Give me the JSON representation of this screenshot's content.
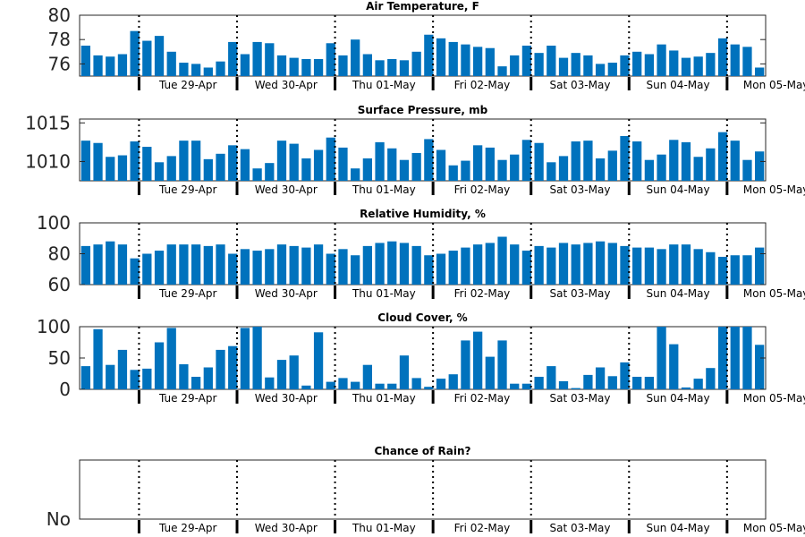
{
  "bar_color": "#0072bd",
  "chart_data": [
    {
      "type": "bar",
      "title": "Air Temperature, F",
      "x_tick_labels": [
        "Tue 29-Apr",
        "Wed 30-Apr",
        "Thu 01-May",
        "Fri 02-May",
        "Sat 03-May",
        "Sun 04-May",
        "Mon 05-May"
      ],
      "y_ticks": [
        "76",
        "78",
        "80"
      ],
      "ylim": [
        75,
        80
      ],
      "values": [
        77.5,
        76.7,
        76.6,
        76.8,
        78.7,
        77.9,
        78.3,
        77.0,
        76.1,
        76.0,
        75.7,
        76.2,
        77.8,
        76.8,
        77.8,
        77.7,
        76.7,
        76.5,
        76.4,
        76.4,
        77.7,
        76.7,
        78.0,
        76.8,
        76.3,
        76.4,
        76.3,
        77.0,
        78.4,
        78.1,
        77.8,
        77.6,
        77.4,
        77.3,
        75.8,
        76.7,
        77.5,
        76.9,
        77.5,
        76.5,
        76.9,
        76.7,
        76.0,
        76.1,
        76.7,
        77.0,
        76.8,
        77.6,
        77.1,
        76.5,
        76.6,
        76.9,
        78.1,
        77.6,
        77.4,
        75.7
      ],
      "grid": false
    },
    {
      "type": "bar",
      "title": "Surface Pressure, mb",
      "x_tick_labels": [
        "Tue 29-Apr",
        "Wed 30-Apr",
        "Thu 01-May",
        "Fri 02-May",
        "Sat 03-May",
        "Sun 04-May",
        "Mon 05-May"
      ],
      "y_ticks": [
        "1010",
        "1015"
      ],
      "ylim": [
        1007.5,
        1015.5
      ],
      "values": [
        1012.7,
        1012.4,
        1010.6,
        1010.8,
        1012.6,
        1011.9,
        1009.9,
        1010.7,
        1012.7,
        1012.7,
        1010.3,
        1011.0,
        1012.1,
        1011.6,
        1009.1,
        1009.8,
        1012.7,
        1012.3,
        1010.4,
        1011.5,
        1013.1,
        1011.8,
        1009.1,
        1010.4,
        1012.5,
        1011.7,
        1010.2,
        1011.1,
        1012.9,
        1011.5,
        1009.5,
        1010.1,
        1012.1,
        1011.8,
        1010.2,
        1010.9,
        1012.8,
        1012.4,
        1009.9,
        1010.7,
        1012.6,
        1012.7,
        1010.4,
        1011.4,
        1013.3,
        1012.6,
        1010.2,
        1010.9,
        1012.8,
        1012.5,
        1010.6,
        1011.7,
        1013.8,
        1012.7,
        1010.2,
        1011.3
      ],
      "grid": false
    },
    {
      "type": "bar",
      "title": "Relative Humidity, %",
      "x_tick_labels": [
        "Tue 29-Apr",
        "Wed 30-Apr",
        "Thu 01-May",
        "Fri 02-May",
        "Sat 03-May",
        "Sun 04-May",
        "Mon 05-May"
      ],
      "y_ticks": [
        "60",
        "80",
        "100"
      ],
      "ylim": [
        60,
        100
      ],
      "values": [
        85,
        86,
        88,
        86,
        77,
        80,
        82,
        86,
        86,
        86,
        85,
        86,
        80,
        83,
        82,
        83,
        86,
        85,
        84,
        86,
        80,
        83,
        79,
        85,
        87,
        88,
        87,
        85,
        79,
        80,
        82,
        84,
        86,
        87,
        91,
        86,
        82,
        85,
        84,
        87,
        86,
        87,
        88,
        87,
        85,
        84,
        84,
        83,
        86,
        86,
        83,
        81,
        78,
        79,
        79,
        84
      ],
      "grid": false
    },
    {
      "type": "bar",
      "title": "Cloud Cover, %",
      "x_tick_labels": [
        "Tue 29-Apr",
        "Wed 30-Apr",
        "Thu 01-May",
        "Fri 02-May",
        "Sat 03-May",
        "Sun 04-May",
        "Mon 05-May"
      ],
      "y_ticks": [
        "0",
        "50",
        "100"
      ],
      "ylim": [
        0,
        100
      ],
      "values": [
        37,
        96,
        39,
        63,
        31,
        33,
        75,
        98,
        40,
        20,
        35,
        63,
        69,
        98,
        100,
        19,
        47,
        54,
        6,
        91,
        12,
        18,
        12,
        39,
        9,
        9,
        54,
        18,
        4,
        17,
        24,
        78,
        92,
        52,
        78,
        9,
        9,
        20,
        37,
        13,
        2,
        23,
        35,
        21,
        43,
        20,
        20,
        100,
        72,
        3,
        17,
        34,
        100,
        100,
        100,
        71
      ],
      "grid": false
    },
    {
      "type": "bar",
      "title": "Chance of Rain?",
      "x_tick_labels": [
        "Tue 29-Apr",
        "Wed 30-Apr",
        "Thu 01-May",
        "Fri 02-May",
        "Sat 03-May",
        "Sun 04-May",
        "Mon 05-May"
      ],
      "y_ticks": [
        "No"
      ],
      "ylim": [
        0,
        1
      ],
      "values": [],
      "grid": false
    }
  ]
}
